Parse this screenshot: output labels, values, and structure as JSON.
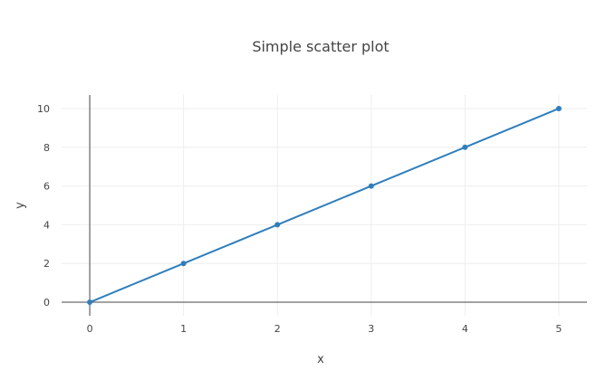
{
  "chart_data": {
    "type": "line",
    "title": "Simple scatter plot",
    "xlabel": "x",
    "ylabel": "y",
    "xlim": [
      -0.3,
      5.3
    ],
    "ylim": [
      -0.7,
      10.7
    ],
    "x_ticks": [
      0,
      1,
      2,
      3,
      4,
      5
    ],
    "y_ticks": [
      0,
      2,
      4,
      6,
      8,
      10
    ],
    "grid": true,
    "mode": "lines+markers",
    "series": [
      {
        "x": [
          0,
          1,
          2,
          3,
          4,
          5
        ],
        "y": [
          0,
          2,
          4,
          6,
          8,
          10
        ],
        "color": "#2f7ebc"
      }
    ]
  }
}
